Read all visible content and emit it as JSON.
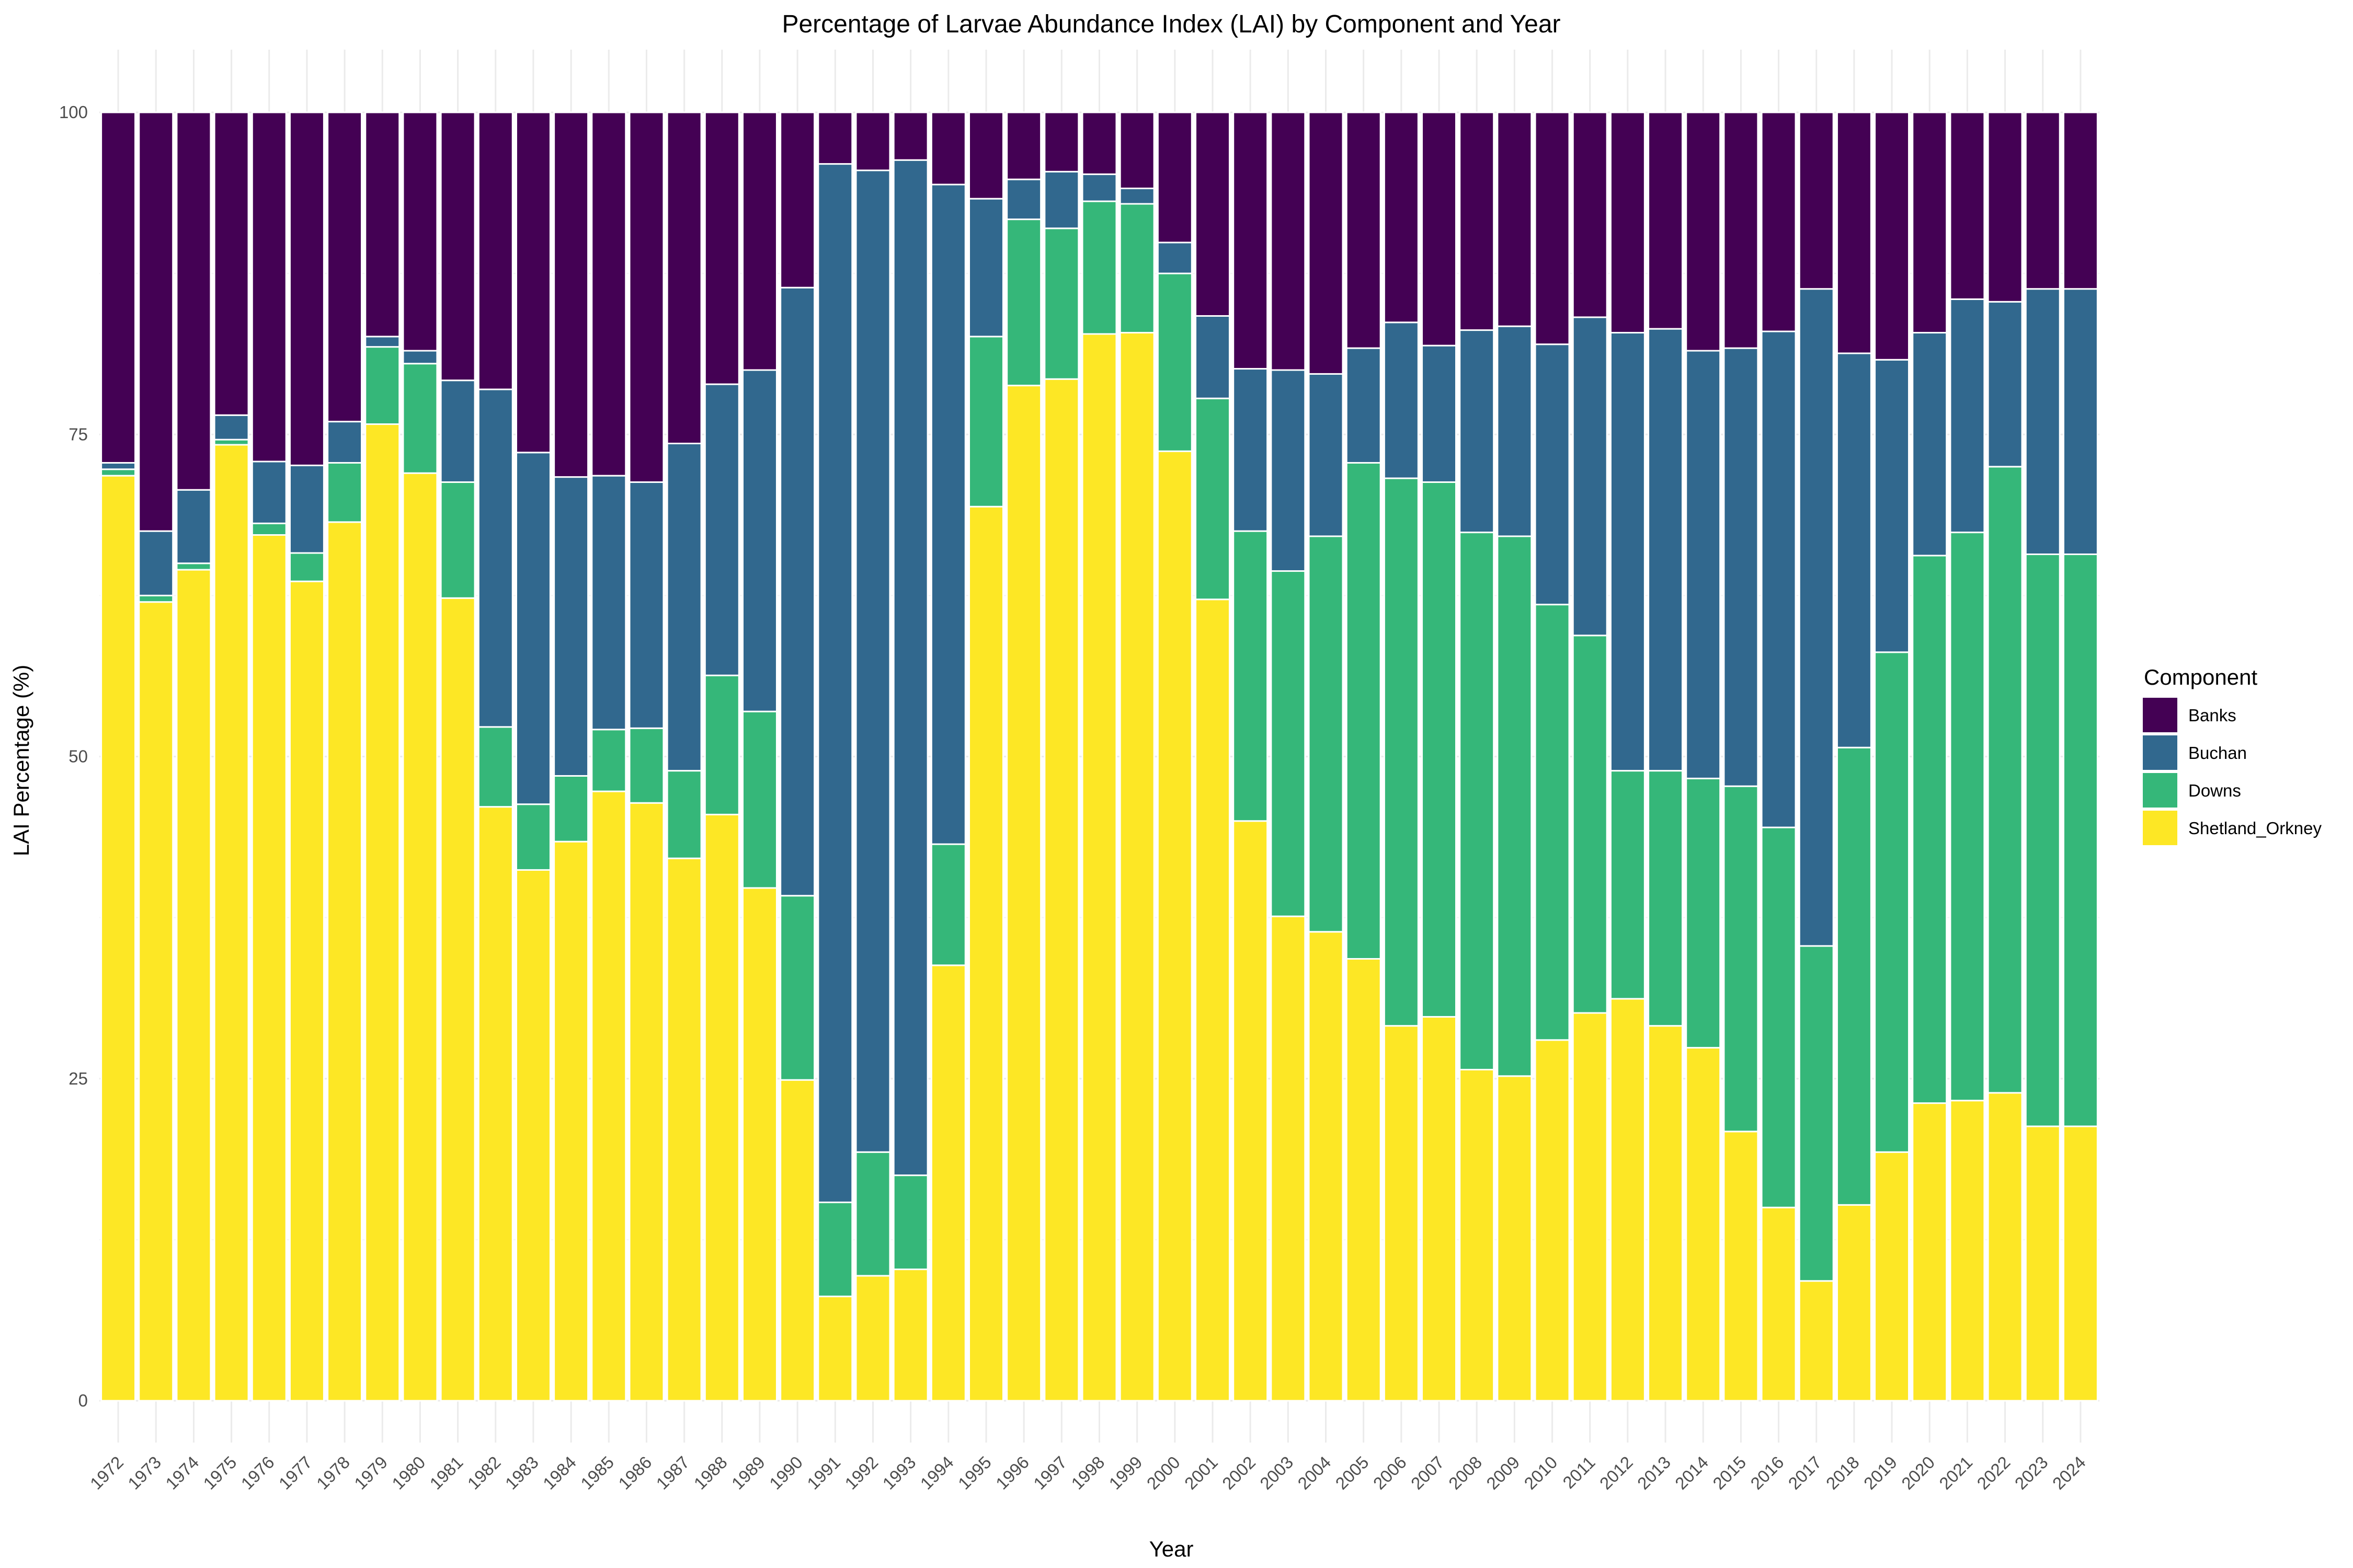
{
  "chart_data": {
    "type": "bar",
    "stacked": true,
    "title": "Percentage of Larvae Abundance Index (LAI) by Component and Year",
    "xlabel": "Year",
    "ylabel": "LAI Percentage (%)",
    "ylim": [
      0,
      100
    ],
    "yticks": [
      "0",
      "25",
      "50",
      "75",
      "100"
    ],
    "grid": true,
    "legend": {
      "title": "Component",
      "position": "right"
    },
    "categories": [
      "1972",
      "1973",
      "1974",
      "1975",
      "1976",
      "1977",
      "1978",
      "1979",
      "1980",
      "1981",
      "1982",
      "1983",
      "1984",
      "1985",
      "1986",
      "1987",
      "1988",
      "1989",
      "1990",
      "1991",
      "1992",
      "1993",
      "1994",
      "1995",
      "1996",
      "1997",
      "1998",
      "1999",
      "2000",
      "2001",
      "2002",
      "2003",
      "2004",
      "2005",
      "2006",
      "2007",
      "2008",
      "2009",
      "2010",
      "2011",
      "2012",
      "2013",
      "2014",
      "2015",
      "2016",
      "2017",
      "2018",
      "2019",
      "2020",
      "2021",
      "2022",
      "2023",
      "2024"
    ],
    "series": [
      {
        "name": "Shetland_Orkney",
        "color": "#fde725",
        "values": [
          71.8,
          62.0,
          64.5,
          74.2,
          67.2,
          63.6,
          68.2,
          75.8,
          72.0,
          62.3,
          46.1,
          41.2,
          43.4,
          47.3,
          46.4,
          42.1,
          45.5,
          39.8,
          24.9,
          8.1,
          9.7,
          10.2,
          33.8,
          69.4,
          78.8,
          79.3,
          82.8,
          82.9,
          73.7,
          62.2,
          45.0,
          37.6,
          36.4,
          34.3,
          29.1,
          29.8,
          25.7,
          25.2,
          28.0,
          30.1,
          31.2,
          29.1,
          27.4,
          20.9,
          15.0,
          9.3,
          15.2,
          19.3,
          23.1,
          23.3,
          23.9,
          21.3,
          21.3
        ]
      },
      {
        "name": "Downs",
        "color": "#35b779",
        "values": [
          0.5,
          0.5,
          0.5,
          0.4,
          0.9,
          2.2,
          4.6,
          6.0,
          8.5,
          9.0,
          6.2,
          5.1,
          5.1,
          4.8,
          5.8,
          6.8,
          10.8,
          13.7,
          14.3,
          7.3,
          9.6,
          7.3,
          9.4,
          13.2,
          12.9,
          11.7,
          10.3,
          10.0,
          13.8,
          15.6,
          22.5,
          26.8,
          30.7,
          38.5,
          42.5,
          41.5,
          41.7,
          41.9,
          33.8,
          29.3,
          17.7,
          19.8,
          20.9,
          26.8,
          29.5,
          26.0,
          35.5,
          38.8,
          42.5,
          44.1,
          48.6,
          44.4,
          44.4
        ]
      },
      {
        "name": "Buchan",
        "color": "#31688e",
        "values": [
          0.5,
          5.0,
          5.7,
          1.9,
          4.8,
          6.8,
          3.2,
          0.8,
          1.0,
          7.9,
          26.2,
          27.3,
          23.2,
          19.7,
          19.1,
          25.4,
          22.6,
          26.5,
          47.2,
          80.6,
          76.2,
          78.8,
          51.2,
          10.7,
          3.1,
          4.4,
          2.1,
          1.2,
          2.4,
          6.4,
          12.6,
          15.6,
          12.6,
          8.9,
          12.1,
          10.6,
          15.7,
          16.3,
          20.2,
          24.7,
          34.0,
          34.3,
          33.2,
          34.0,
          38.5,
          51.0,
          30.6,
          22.7,
          17.3,
          18.1,
          12.8,
          20.6,
          20.6
        ]
      },
      {
        "name": "Banks",
        "color": "#440154",
        "values": [
          27.2,
          32.5,
          29.3,
          23.5,
          27.1,
          27.4,
          24.0,
          17.4,
          18.5,
          20.8,
          21.5,
          26.4,
          28.3,
          28.2,
          28.7,
          25.7,
          21.1,
          20.0,
          13.6,
          4.0,
          4.5,
          3.7,
          5.6,
          6.7,
          5.2,
          4.6,
          4.8,
          5.9,
          10.1,
          15.8,
          19.9,
          20.0,
          20.3,
          18.3,
          16.3,
          18.1,
          16.9,
          16.6,
          18.0,
          15.9,
          17.1,
          16.8,
          18.5,
          18.3,
          17.0,
          13.7,
          18.7,
          19.2,
          17.1,
          14.5,
          14.7,
          13.7,
          13.7
        ]
      }
    ]
  }
}
